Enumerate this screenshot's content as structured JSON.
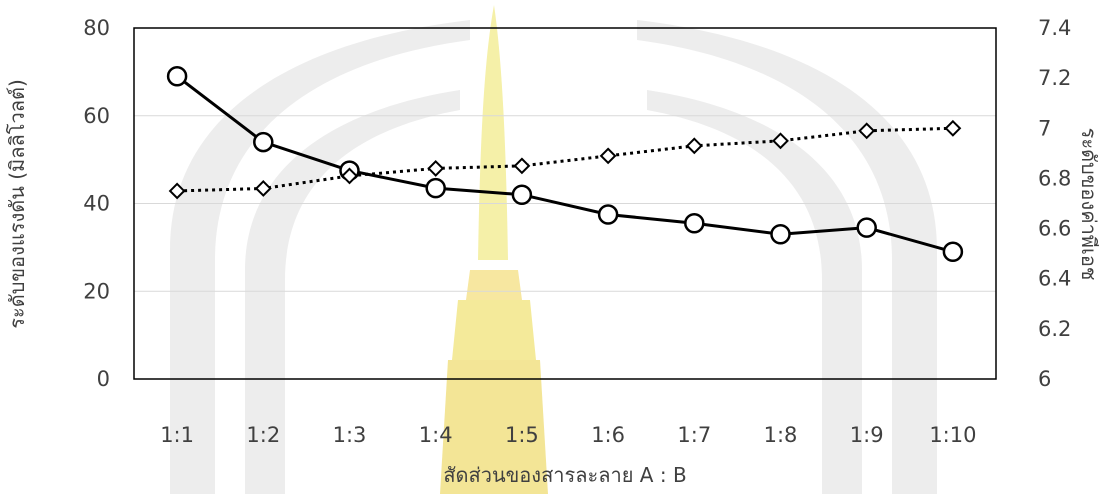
{
  "chart_data": {
    "type": "line",
    "xlabel": "สัดส่วนของสารละลาย A : B",
    "ylabel_left": "ระดับของแรงดัน (มิลลิโวลต์)",
    "ylabel_right": "ระดับของค่าพีเอช",
    "categories": [
      "1:1",
      "1:2",
      "1:3",
      "1:4",
      "1:5",
      "1:6",
      "1:7",
      "1:8",
      "1:9",
      "1:10"
    ],
    "left_axis": {
      "min": 0,
      "max": 80,
      "ticks": [
        "0",
        "20",
        "40",
        "60",
        "80"
      ]
    },
    "right_axis": {
      "min": 6,
      "max": 7.4,
      "ticks": [
        "6",
        "6.2",
        "6.4",
        "6.6",
        "6.8",
        "7",
        "7.2",
        "7.4"
      ]
    },
    "grid": "horizontal",
    "legend": "none",
    "series": [
      {
        "axis": "left",
        "line_style": "solid",
        "marker": "circle",
        "color": "#000000",
        "values": [
          69,
          54,
          47.5,
          43.5,
          42,
          37.5,
          35.5,
          33,
          34.5,
          29
        ]
      },
      {
        "axis": "right",
        "line_style": "dotted",
        "marker": "diamond",
        "color": "#000000",
        "values": [
          6.75,
          6.76,
          6.81,
          6.84,
          6.85,
          6.89,
          6.93,
          6.95,
          6.99,
          7.0
        ]
      }
    ]
  }
}
